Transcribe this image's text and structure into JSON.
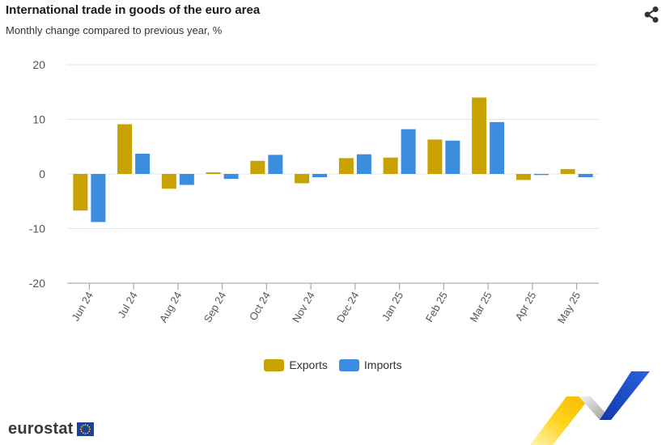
{
  "title": "International trade in goods of the euro area",
  "subtitle": "Monthly change compared to previous year, %",
  "logo_text": "eurostat",
  "colors": {
    "exports": "#c8a200",
    "imports": "#3b8de0",
    "grid": "#e6e6e6",
    "axis": "#999999"
  },
  "chart_data": {
    "type": "bar",
    "title": "International trade in goods of the euro area",
    "subtitle": "Monthly change compared to previous year, %",
    "categories": [
      "Jun 24",
      "Jul 24",
      "Aug 24",
      "Sep 24",
      "Oct 24",
      "Nov 24",
      "Dec 24",
      "Jan 25",
      "Feb 25",
      "Mar 25",
      "Apr 25",
      "May 25"
    ],
    "series": [
      {
        "name": "Exports",
        "color": "#c8a200",
        "values": [
          -6.7,
          9.1,
          -2.7,
          0.3,
          2.4,
          -1.7,
          2.9,
          3.0,
          6.3,
          14.0,
          -1.1,
          0.9
        ]
      },
      {
        "name": "Imports",
        "color": "#3b8de0",
        "values": [
          -8.8,
          3.7,
          -2.0,
          -0.9,
          3.5,
          -0.6,
          3.6,
          8.2,
          6.1,
          9.5,
          -0.2,
          -0.6
        ]
      }
    ],
    "ylim": [
      -20,
      20
    ],
    "yticks": [
      -20,
      -10,
      0,
      10,
      20
    ],
    "ytick_labels": [
      "-20",
      "-10",
      "0",
      "10",
      "20"
    ],
    "xlabel": "",
    "ylabel": "",
    "grid": true,
    "legend": "bottom-center"
  }
}
